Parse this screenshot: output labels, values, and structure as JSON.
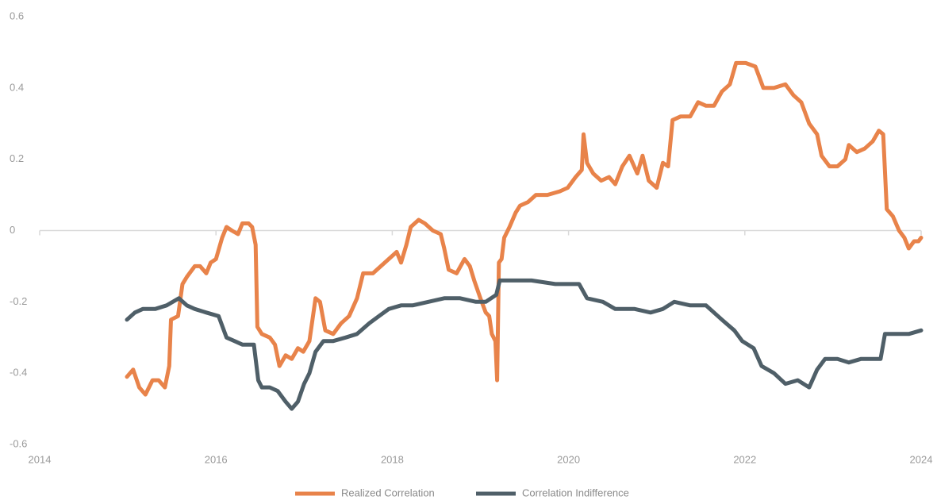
{
  "chart_data": {
    "type": "line",
    "xlim": [
      2014,
      2024
    ],
    "xticks": [
      2014,
      2016,
      2018,
      2020,
      2022,
      2024
    ],
    "ylim": [
      -0.6,
      0.6
    ],
    "yticks": [
      0.6,
      0.4,
      0.2,
      0,
      -0.2,
      -0.4,
      -0.6
    ],
    "legend": "bottom",
    "series": [
      {
        "name": "Realized Correlation",
        "color": "#e8834a",
        "x": [
          2014.99,
          2015.06,
          2015.13,
          2015.2,
          2015.28,
          2015.35,
          2015.42,
          2015.47,
          2015.49,
          2015.57,
          2015.62,
          2015.67,
          2015.76,
          2015.82,
          2015.89,
          2015.94,
          2016.0,
          2016.07,
          2016.12,
          2016.18,
          2016.25,
          2016.3,
          2016.37,
          2016.41,
          2016.45,
          2016.47,
          2016.52,
          2016.61,
          2016.67,
          2016.72,
          2016.79,
          2016.86,
          2016.93,
          2016.99,
          2017.06,
          2017.13,
          2017.18,
          2017.24,
          2017.33,
          2017.42,
          2017.51,
          2017.6,
          2017.67,
          2017.78,
          2017.87,
          2017.96,
          2018.05,
          2018.1,
          2018.16,
          2018.21,
          2018.3,
          2018.37,
          2018.46,
          2018.55,
          2018.59,
          2018.64,
          2018.73,
          2018.82,
          2018.88,
          2018.93,
          2019.0,
          2019.06,
          2019.1,
          2019.13,
          2019.17,
          2019.19,
          2019.21,
          2019.24,
          2019.27,
          2019.33,
          2019.4,
          2019.45,
          2019.54,
          2019.63,
          2019.76,
          2019.9,
          2019.99,
          2020.08,
          2020.15,
          2020.17,
          2020.21,
          2020.28,
          2020.37,
          2020.46,
          2020.53,
          2020.61,
          2020.69,
          2020.78,
          2020.84,
          2020.91,
          2021.0,
          2021.07,
          2021.13,
          2021.18,
          2021.27,
          2021.38,
          2021.47,
          2021.56,
          2021.65,
          2021.74,
          2021.83,
          2021.9,
          2022.01,
          2022.12,
          2022.21,
          2022.33,
          2022.46,
          2022.55,
          2022.64,
          2022.73,
          2022.82,
          2022.87,
          2022.96,
          2023.05,
          2023.14,
          2023.18,
          2023.27,
          2023.36,
          2023.45,
          2023.52,
          2023.57,
          2023.61,
          2023.68,
          2023.75,
          2023.81,
          2023.86,
          2023.92,
          2023.97,
          2024.0
        ],
        "values": [
          -0.41,
          -0.39,
          -0.44,
          -0.46,
          -0.42,
          -0.42,
          -0.44,
          -0.38,
          -0.25,
          -0.24,
          -0.15,
          -0.13,
          -0.1,
          -0.1,
          -0.12,
          -0.09,
          -0.08,
          -0.02,
          0.01,
          0.0,
          -0.01,
          0.02,
          0.02,
          0.01,
          -0.04,
          -0.27,
          -0.29,
          -0.3,
          -0.32,
          -0.38,
          -0.35,
          -0.36,
          -0.33,
          -0.34,
          -0.31,
          -0.19,
          -0.2,
          -0.28,
          -0.29,
          -0.26,
          -0.24,
          -0.19,
          -0.12,
          -0.12,
          -0.1,
          -0.08,
          -0.06,
          -0.09,
          -0.04,
          0.01,
          0.03,
          0.02,
          0.0,
          -0.01,
          -0.05,
          -0.11,
          -0.12,
          -0.08,
          -0.1,
          -0.14,
          -0.19,
          -0.23,
          -0.24,
          -0.29,
          -0.31,
          -0.42,
          -0.09,
          -0.08,
          -0.02,
          0.01,
          0.05,
          0.07,
          0.08,
          0.1,
          0.1,
          0.11,
          0.12,
          0.15,
          0.17,
          0.27,
          0.19,
          0.16,
          0.14,
          0.15,
          0.13,
          0.18,
          0.21,
          0.16,
          0.21,
          0.14,
          0.12,
          0.19,
          0.18,
          0.31,
          0.32,
          0.32,
          0.36,
          0.35,
          0.35,
          0.39,
          0.41,
          0.47,
          0.47,
          0.46,
          0.4,
          0.4,
          0.41,
          0.38,
          0.36,
          0.3,
          0.27,
          0.21,
          0.18,
          0.18,
          0.2,
          0.24,
          0.22,
          0.23,
          0.25,
          0.28,
          0.27,
          0.06,
          0.04,
          0.0,
          -0.02,
          -0.05,
          -0.03,
          -0.03,
          -0.02
        ]
      },
      {
        "name": "Correlation Indifference",
        "color": "#4f5f68",
        "x": [
          2014.99,
          2015.08,
          2015.17,
          2015.31,
          2015.44,
          2015.58,
          2015.67,
          2015.76,
          2015.89,
          2016.03,
          2016.12,
          2016.21,
          2016.3,
          2016.43,
          2016.48,
          2016.52,
          2016.61,
          2016.7,
          2016.79,
          2016.86,
          2016.93,
          2017.0,
          2017.06,
          2017.13,
          2017.22,
          2017.33,
          2017.47,
          2017.6,
          2017.74,
          2017.85,
          2017.96,
          2018.1,
          2018.23,
          2018.41,
          2018.59,
          2018.77,
          2018.95,
          2019.06,
          2019.18,
          2019.22,
          2019.4,
          2019.58,
          2019.85,
          2020.12,
          2020.21,
          2020.39,
          2020.53,
          2020.75,
          2020.93,
          2021.07,
          2021.2,
          2021.38,
          2021.56,
          2021.74,
          2021.88,
          2021.97,
          2022.1,
          2022.19,
          2022.33,
          2022.46,
          2022.6,
          2022.73,
          2022.82,
          2022.91,
          2023.05,
          2023.18,
          2023.32,
          2023.45,
          2023.54,
          2023.59,
          2023.72,
          2023.86,
          2024.0
        ],
        "values": [
          -0.25,
          -0.23,
          -0.22,
          -0.22,
          -0.21,
          -0.19,
          -0.21,
          -0.22,
          -0.23,
          -0.24,
          -0.3,
          -0.31,
          -0.32,
          -0.32,
          -0.42,
          -0.44,
          -0.44,
          -0.45,
          -0.48,
          -0.5,
          -0.48,
          -0.43,
          -0.4,
          -0.34,
          -0.31,
          -0.31,
          -0.3,
          -0.29,
          -0.26,
          -0.24,
          -0.22,
          -0.21,
          -0.21,
          -0.2,
          -0.19,
          -0.19,
          -0.2,
          -0.2,
          -0.18,
          -0.14,
          -0.14,
          -0.14,
          -0.15,
          -0.15,
          -0.19,
          -0.2,
          -0.22,
          -0.22,
          -0.23,
          -0.22,
          -0.2,
          -0.21,
          -0.21,
          -0.25,
          -0.28,
          -0.31,
          -0.33,
          -0.38,
          -0.4,
          -0.43,
          -0.42,
          -0.44,
          -0.39,
          -0.36,
          -0.36,
          -0.37,
          -0.36,
          -0.36,
          -0.36,
          -0.29,
          -0.29,
          -0.29,
          -0.28
        ]
      }
    ]
  }
}
